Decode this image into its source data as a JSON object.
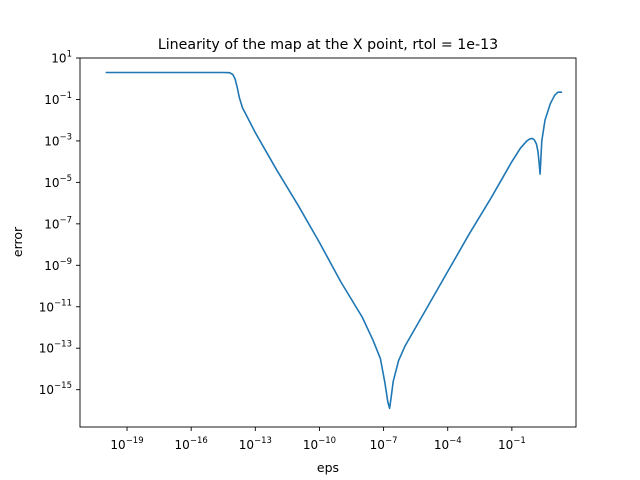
{
  "chart_data": {
    "type": "line",
    "title": "Linearity of the map at the X point, rtol = 1e-13",
    "xlabel": "eps",
    "ylabel": "error",
    "xscale": "log",
    "yscale": "log",
    "xlim_log10": [
      -21.2,
      2.0
    ],
    "ylim_log10": [
      -16.8,
      1.0
    ],
    "grid": false,
    "x_ticks": [
      {
        "base": "10",
        "exp": "−19",
        "log10": -19
      },
      {
        "base": "10",
        "exp": "−16",
        "log10": -16
      },
      {
        "base": "10",
        "exp": "−13",
        "log10": -13
      },
      {
        "base": "10",
        "exp": "−10",
        "log10": -10
      },
      {
        "base": "10",
        "exp": "−7",
        "log10": -7
      },
      {
        "base": "10",
        "exp": "−4",
        "log10": -4
      },
      {
        "base": "10",
        "exp": "−1",
        "log10": -1
      }
    ],
    "y_ticks": [
      {
        "base": "10",
        "exp": "1",
        "log10": 1
      },
      {
        "base": "10",
        "exp": "−1",
        "log10": -1
      },
      {
        "base": "10",
        "exp": "−3",
        "log10": -3
      },
      {
        "base": "10",
        "exp": "−5",
        "log10": -5
      },
      {
        "base": "10",
        "exp": "−7",
        "log10": -7
      },
      {
        "base": "10",
        "exp": "−9",
        "log10": -9
      },
      {
        "base": "10",
        "exp": "−11",
        "log10": -11
      },
      {
        "base": "10",
        "exp": "−13",
        "log10": -13
      },
      {
        "base": "10",
        "exp": "−15",
        "log10": -15
      }
    ],
    "series": [
      {
        "color": "#1f77b4",
        "points_log10": [
          [
            -20.0,
            0.3
          ],
          [
            -18.0,
            0.3
          ],
          [
            -16.0,
            0.3
          ],
          [
            -14.5,
            0.3
          ],
          [
            -14.2,
            0.29
          ],
          [
            -14.05,
            0.2
          ],
          [
            -13.95,
            0.0
          ],
          [
            -13.85,
            -0.4
          ],
          [
            -13.75,
            -0.9
          ],
          [
            -13.6,
            -1.4
          ],
          [
            -13.4,
            -1.8
          ],
          [
            -13.0,
            -2.6
          ],
          [
            -12.5,
            -3.5
          ],
          [
            -12.0,
            -4.4
          ],
          [
            -11.0,
            -6.1
          ],
          [
            -10.0,
            -7.9
          ],
          [
            -9.0,
            -9.8
          ],
          [
            -8.0,
            -11.5
          ],
          [
            -7.5,
            -12.6
          ],
          [
            -7.15,
            -13.5
          ],
          [
            -6.95,
            -14.6
          ],
          [
            -6.8,
            -15.6
          ],
          [
            -6.72,
            -15.9
          ],
          [
            -6.65,
            -15.4
          ],
          [
            -6.55,
            -14.6
          ],
          [
            -6.3,
            -13.6
          ],
          [
            -6.0,
            -12.9
          ],
          [
            -5.0,
            -11.1
          ],
          [
            -4.0,
            -9.3
          ],
          [
            -3.0,
            -7.5
          ],
          [
            -2.0,
            -5.8
          ],
          [
            -1.5,
            -4.9
          ],
          [
            -1.0,
            -4.0
          ],
          [
            -0.6,
            -3.35
          ],
          [
            -0.3,
            -3.0
          ],
          [
            -0.15,
            -2.9
          ],
          [
            -0.05,
            -2.88
          ],
          [
            0.05,
            -2.95
          ],
          [
            0.15,
            -3.15
          ],
          [
            0.22,
            -3.5
          ],
          [
            0.27,
            -4.0
          ],
          [
            0.32,
            -4.6
          ],
          [
            0.36,
            -3.8
          ],
          [
            0.4,
            -3.0
          ],
          [
            0.55,
            -2.0
          ],
          [
            0.8,
            -1.2
          ],
          [
            1.0,
            -0.8
          ],
          [
            1.15,
            -0.65
          ],
          [
            1.35,
            -0.65
          ]
        ]
      }
    ]
  }
}
